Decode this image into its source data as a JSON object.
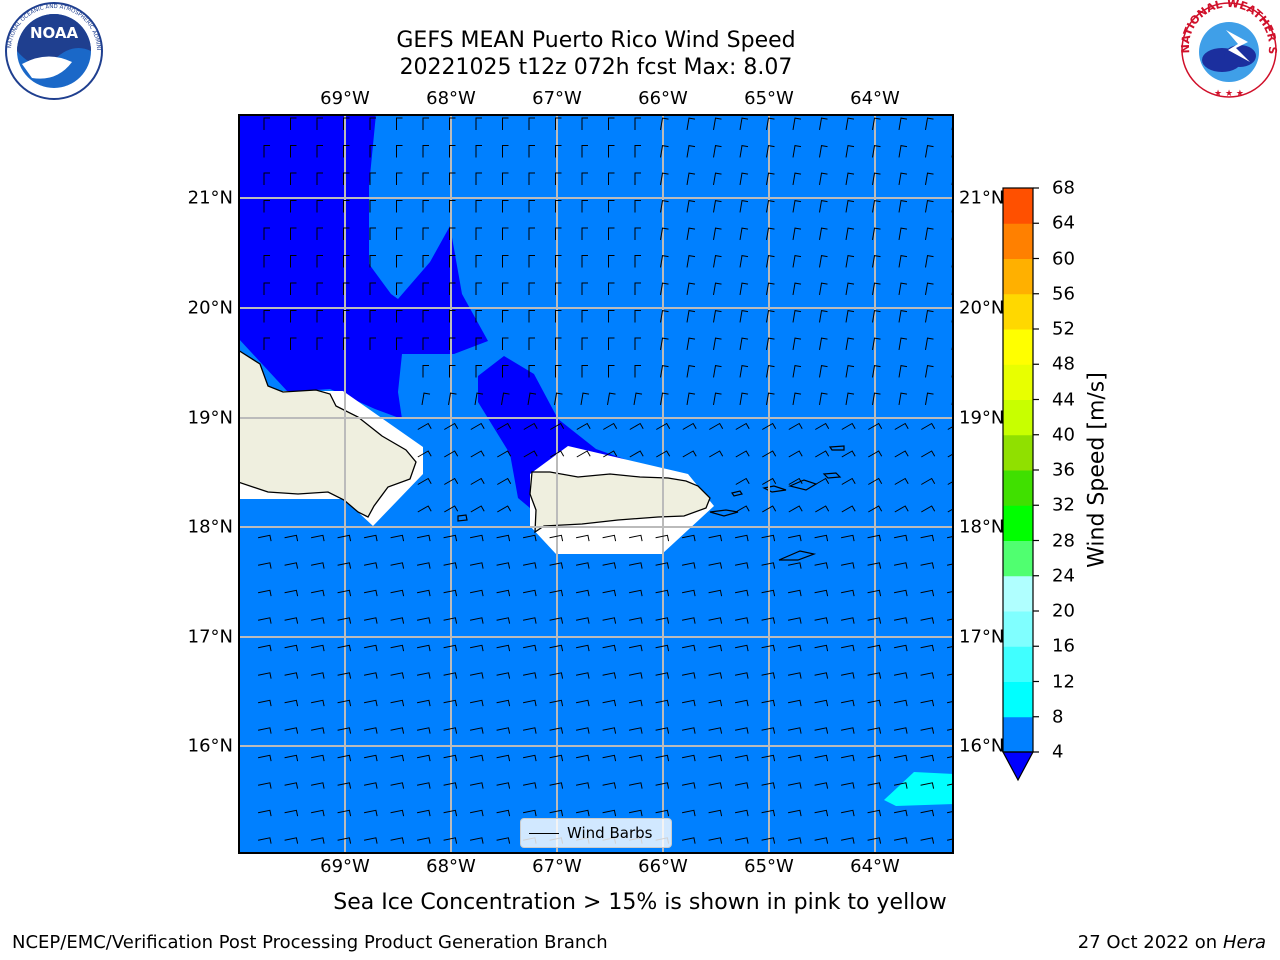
{
  "title": {
    "line1": "GEFS MEAN Puerto Rico Wind Speed",
    "line2": "20221025 t12z 072h fcst   Max: 8.07"
  },
  "map": {
    "lon_ticks": [
      "69°W",
      "68°W",
      "67°W",
      "66°W",
      "65°W",
      "64°W"
    ],
    "lat_ticks": [
      "21°N",
      "20°N",
      "19°N",
      "18°N",
      "17°N",
      "16°N"
    ],
    "extent": {
      "lon": [
        -70.0,
        -63.25
      ],
      "lat": [
        15.0,
        21.75
      ]
    },
    "legend_label": "Wind Barbs",
    "colors": {
      "band_4_8": "#0080ff",
      "band_below_4": "#0000ff",
      "band_8_12": "#00ffff",
      "land": "#efefdf",
      "grid": "#bbbbbb"
    }
  },
  "colorbar": {
    "title": "Wind Speed [m/s]",
    "labels": [
      "68",
      "64",
      "60",
      "56",
      "52",
      "48",
      "44",
      "40",
      "36",
      "32",
      "28",
      "24",
      "20",
      "16",
      "12",
      "8",
      "4"
    ],
    "colors": [
      "#0080ff",
      "#00ffff",
      "#40ffff",
      "#80ffff",
      "#b0ffff",
      "#50ff70",
      "#00ff00",
      "#40e000",
      "#90e000",
      "#c8ff00",
      "#e8ff00",
      "#ffff00",
      "#ffd800",
      "#ffb000",
      "#ff8000",
      "#ff5000",
      "#ff2000",
      "#ff0000"
    ],
    "extend_color": "#0000ff"
  },
  "subtitle": "Sea Ice Concentration > 15% is shown in pink to yellow",
  "footer": {
    "left": "NCEP/EMC/Verification Post Processing Product Generation Branch",
    "date": "27 Oct 2022 on ",
    "host": "Hera"
  },
  "logos": {
    "left": "NOAA",
    "right": "NATIONAL WEATHER SERVICE"
  }
}
